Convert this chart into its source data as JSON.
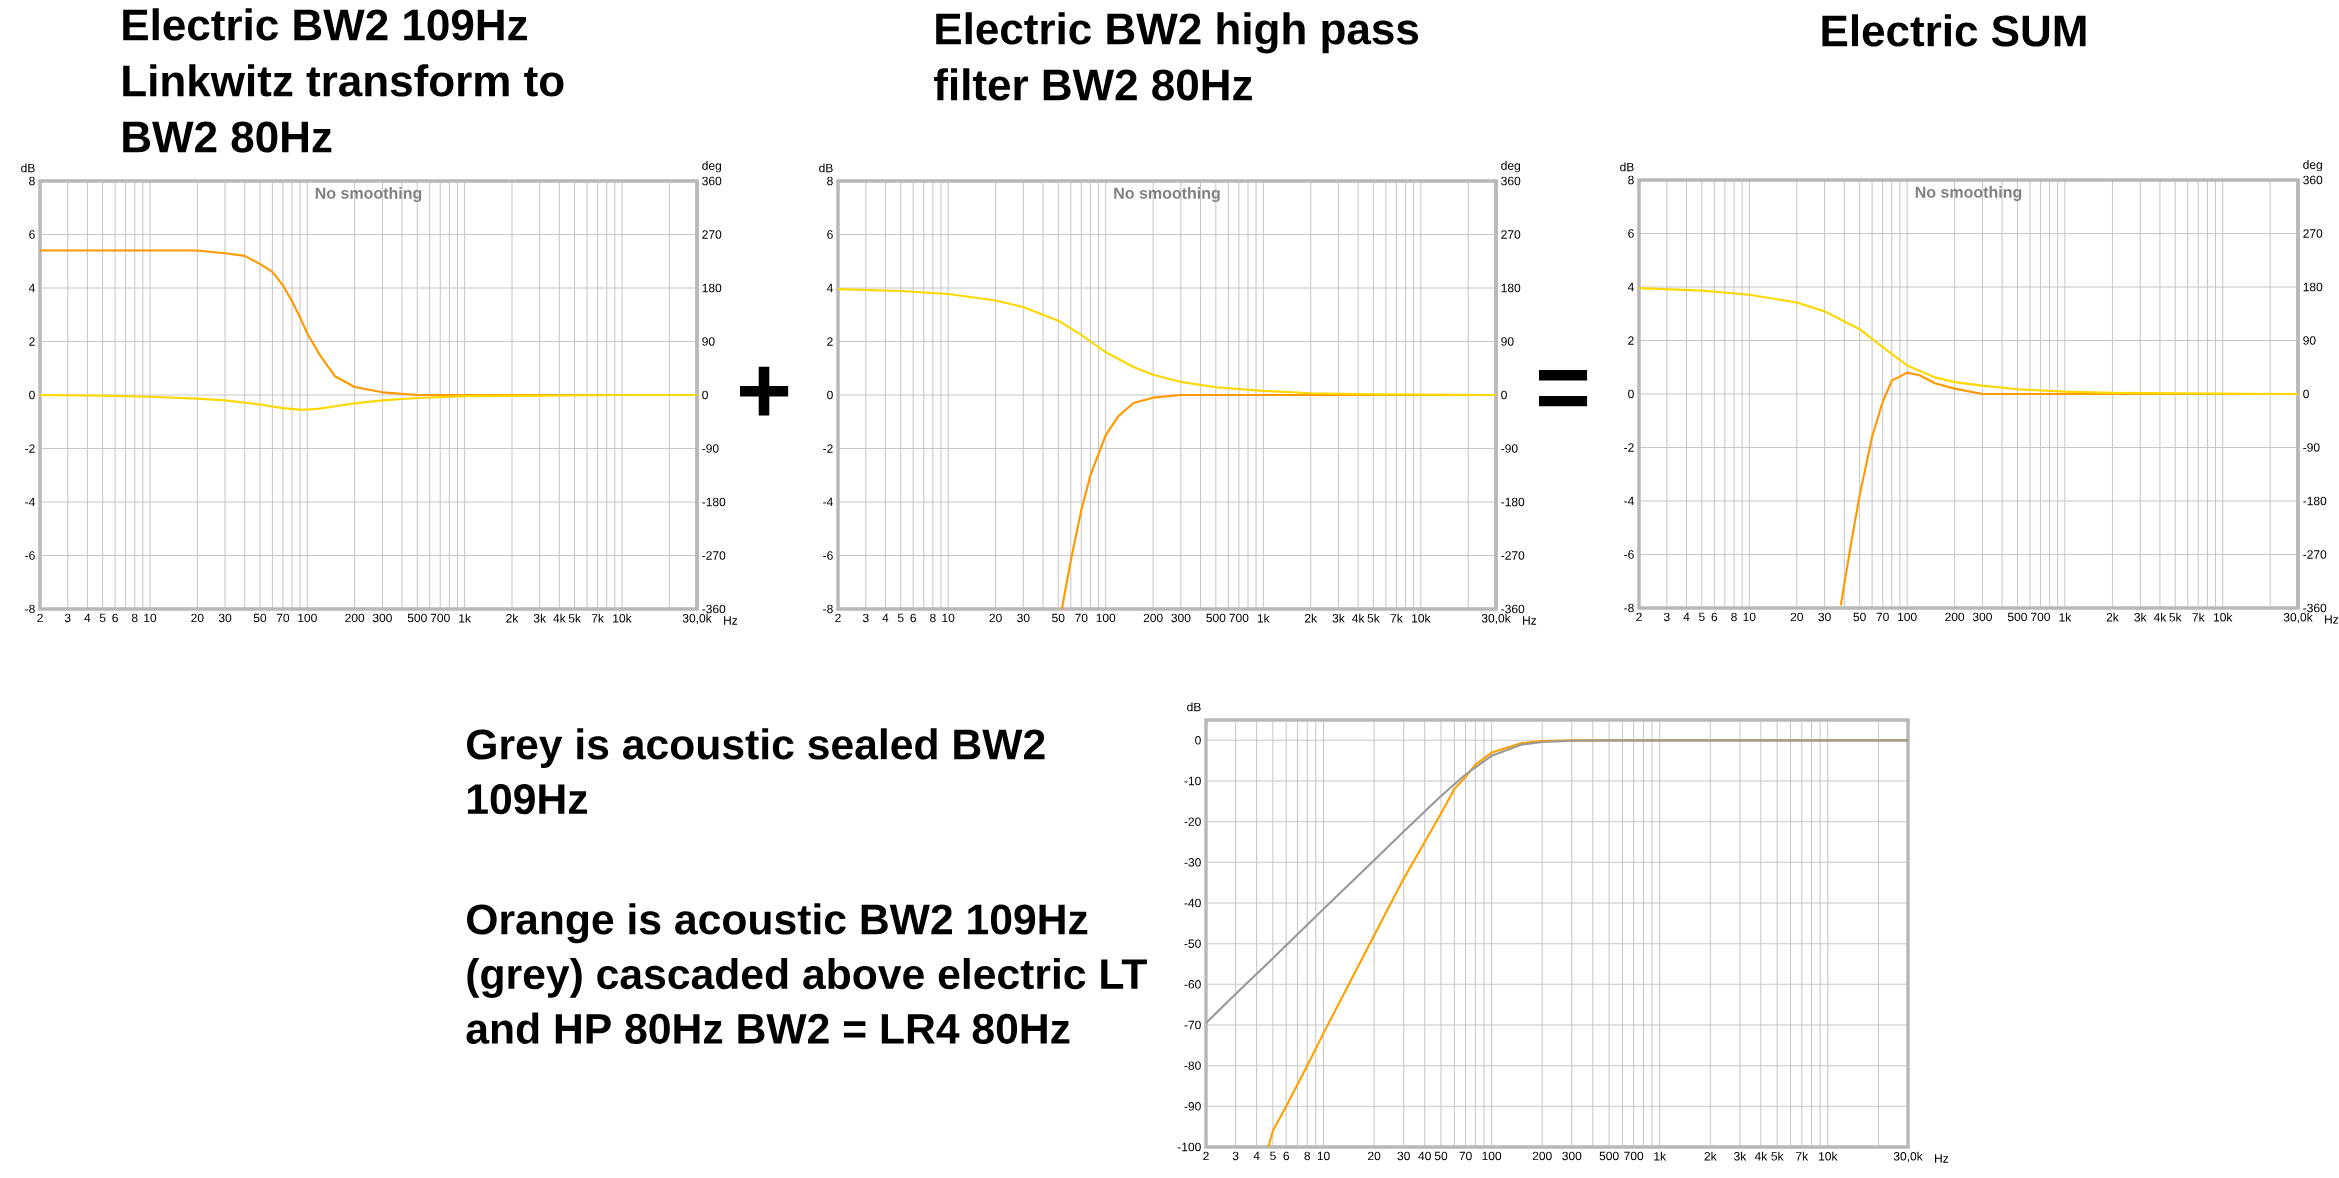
{
  "chart_data": [
    {
      "type": "line",
      "title": "Electric BW2 109Hz Linkwitz transform to BW2 80Hz",
      "annotations": [
        "No smoothing",
        "+"
      ],
      "xlabel": "Hz",
      "ylabel": "dB",
      "y2label": "deg",
      "log": "x",
      "grid": true,
      "xlim": [
        2,
        30000
      ],
      "xticks": [
        2,
        3,
        4,
        5,
        6,
        {
          "value": 7,
          "label": null
        },
        8,
        {
          "value": 9,
          "label": null
        },
        10,
        20,
        30,
        {
          "value": 40,
          "label": null
        },
        50,
        {
          "value": 60,
          "label": null
        },
        70,
        {
          "value": 80,
          "label": null
        },
        {
          "value": 90,
          "label": null
        },
        100,
        200,
        300,
        {
          "value": 400,
          "label": null
        },
        500,
        {
          "value": 600,
          "label": null
        },
        700,
        {
          "value": 800,
          "label": null
        },
        {
          "value": 900,
          "label": null
        },
        {
          "value": 1000,
          "label": "1k"
        },
        {
          "value": 2000,
          "label": "2k"
        },
        {
          "value": 3000,
          "label": "3k"
        },
        {
          "value": 4000,
          "label": "4k"
        },
        {
          "value": 5000,
          "label": "5k"
        },
        {
          "value": 6000,
          "label": null
        },
        {
          "value": 7000,
          "label": "7k"
        },
        {
          "value": 8000,
          "label": null
        },
        {
          "value": 9000,
          "label": null
        },
        {
          "value": 10000,
          "label": "10k"
        },
        {
          "value": 20000,
          "label": null
        },
        {
          "value": 30000,
          "label": "30,0k"
        }
      ],
      "ylim": [
        -8,
        8
      ],
      "yticks": [
        -8,
        -6,
        -4,
        -2,
        0,
        2,
        4,
        6,
        8
      ],
      "y2lim": [
        -360,
        360
      ],
      "y2ticks": [
        -360,
        -270,
        -180,
        -90,
        0,
        90,
        180,
        270,
        360
      ],
      "series": [
        {
          "color": "#ff9900",
          "x": [
            2,
            10,
            20,
            30,
            40,
            50,
            60,
            70,
            80,
            90,
            100,
            120,
            150,
            200,
            300,
            500,
            1000,
            30000
          ],
          "values": [
            5.4,
            5.4,
            5.4,
            5.3,
            5.2,
            4.9,
            4.6,
            4.1,
            3.5,
            2.9,
            2.3,
            1.5,
            0.7,
            0.3,
            0.1,
            0,
            0,
            0
          ]
        },
        {
          "color": "#ffd700",
          "axis": "y2",
          "x": [
            2,
            5,
            10,
            20,
            30,
            50,
            70,
            93,
            120,
            150,
            200,
            300,
            500,
            1000,
            3000,
            10000,
            30000
          ],
          "values": [
            0,
            -1,
            -3,
            -6,
            -9,
            -16,
            -22,
            -25,
            -23,
            -19,
            -14,
            -9,
            -5,
            -2,
            -1,
            0,
            0
          ]
        }
      ]
    },
    {
      "type": "line",
      "title": "Electric BW2 high pass filter BW2 80Hz",
      "annotations": [
        "No smoothing",
        "="
      ],
      "xlabel": "Hz",
      "ylabel": "dB",
      "y2label": "deg",
      "log": "x",
      "grid": true,
      "xlim": [
        2,
        30000
      ],
      "xticks": [
        2,
        3,
        4,
        5,
        6,
        {
          "value": 7,
          "label": null
        },
        8,
        {
          "value": 9,
          "label": null
        },
        10,
        20,
        30,
        {
          "value": 40,
          "label": null
        },
        50,
        {
          "value": 60,
          "label": null
        },
        70,
        {
          "value": 80,
          "label": null
        },
        {
          "value": 90,
          "label": null
        },
        100,
        200,
        300,
        {
          "value": 400,
          "label": null
        },
        500,
        {
          "value": 600,
          "label": null
        },
        700,
        {
          "value": 800,
          "label": null
        },
        {
          "value": 900,
          "label": null
        },
        {
          "value": 1000,
          "label": "1k"
        },
        {
          "value": 2000,
          "label": "2k"
        },
        {
          "value": 3000,
          "label": "3k"
        },
        {
          "value": 4000,
          "label": "4k"
        },
        {
          "value": 5000,
          "label": "5k"
        },
        {
          "value": 6000,
          "label": null
        },
        {
          "value": 7000,
          "label": "7k"
        },
        {
          "value": 8000,
          "label": null
        },
        {
          "value": 9000,
          "label": null
        },
        {
          "value": 10000,
          "label": "10k"
        },
        {
          "value": 20000,
          "label": null
        },
        {
          "value": 30000,
          "label": "30,0k"
        }
      ],
      "ylim": [
        -8,
        8
      ],
      "yticks": [
        -8,
        -6,
        -4,
        -2,
        0,
        2,
        4,
        6,
        8
      ],
      "y2lim": [
        -360,
        360
      ],
      "y2ticks": [
        -360,
        -270,
        -180,
        -90,
        0,
        90,
        180,
        270,
        360
      ],
      "series": [
        {
          "color": "#ff9900",
          "x": [
            52.7,
            55,
            60,
            70,
            80,
            100,
            120,
            150,
            200,
            300,
            500,
            1000,
            30000
          ],
          "values": [
            -8,
            -7.4,
            -6.2,
            -4.3,
            -3,
            -1.5,
            -0.8,
            -0.3,
            -0.1,
            0,
            0,
            0,
            0
          ]
        },
        {
          "color": "#ffd700",
          "axis": "y2",
          "x": [
            2,
            5,
            10,
            20,
            30,
            50,
            70,
            80,
            100,
            150,
            200,
            300,
            500,
            1000,
            2000,
            5000,
            30000
          ],
          "values": [
            178,
            175,
            170,
            159,
            148,
            125,
            101,
            90,
            72,
            47,
            34,
            22,
            13,
            7,
            3,
            1,
            0
          ]
        }
      ]
    },
    {
      "type": "line",
      "title": "Electric SUM",
      "annotations": [
        "No smoothing"
      ],
      "xlabel": "Hz",
      "ylabel": "dB",
      "y2label": "deg",
      "log": "x",
      "grid": true,
      "xlim": [
        2,
        30000
      ],
      "xticks": [
        2,
        3,
        4,
        5,
        6,
        {
          "value": 7,
          "label": null
        },
        8,
        {
          "value": 9,
          "label": null
        },
        10,
        20,
        30,
        {
          "value": 40,
          "label": null
        },
        50,
        {
          "value": 60,
          "label": null
        },
        70,
        {
          "value": 80,
          "label": null
        },
        {
          "value": 90,
          "label": null
        },
        100,
        200,
        300,
        {
          "value": 400,
          "label": null
        },
        500,
        {
          "value": 600,
          "label": null
        },
        700,
        {
          "value": 800,
          "label": null
        },
        {
          "value": 900,
          "label": null
        },
        {
          "value": 1000,
          "label": "1k"
        },
        {
          "value": 2000,
          "label": "2k"
        },
        {
          "value": 3000,
          "label": "3k"
        },
        {
          "value": 4000,
          "label": "4k"
        },
        {
          "value": 5000,
          "label": "5k"
        },
        {
          "value": 6000,
          "label": null
        },
        {
          "value": 7000,
          "label": "7k"
        },
        {
          "value": 8000,
          "label": null
        },
        {
          "value": 9000,
          "label": null
        },
        {
          "value": 10000,
          "label": "10k"
        },
        {
          "value": 20000,
          "label": null
        },
        {
          "value": 30000,
          "label": "30,0k"
        }
      ],
      "ylim": [
        -8,
        8
      ],
      "yticks": [
        -8,
        -6,
        -4,
        -2,
        0,
        2,
        4,
        6,
        8
      ],
      "y2lim": [
        -360,
        360
      ],
      "y2ticks": [
        -360,
        -270,
        -180,
        -90,
        0,
        90,
        180,
        270,
        360
      ],
      "series": [
        {
          "color": "#ff9900",
          "x": [
            38,
            40,
            45,
            50,
            60,
            70,
            80,
            100,
            120,
            150,
            200,
            300,
            500,
            30000
          ],
          "values": [
            -7.9,
            -7.1,
            -5.3,
            -3.8,
            -1.6,
            -0.3,
            0.5,
            0.8,
            0.7,
            0.4,
            0.2,
            0,
            0,
            0
          ]
        },
        {
          "color": "#ffd700",
          "axis": "y2",
          "x": [
            2,
            5,
            10,
            20,
            30,
            50,
            70,
            100,
            150,
            200,
            300,
            500,
            1000,
            2000,
            5000,
            30000
          ],
          "values": [
            178,
            174,
            167,
            154,
            139,
            109,
            79,
            48,
            28,
            20,
            14,
            8,
            4,
            2,
            1,
            0
          ]
        }
      ]
    },
    {
      "type": "line",
      "annotations": [
        "Grey is acoustic sealed BW2 109Hz",
        "Orange is acoustic BW2 109Hz (grey) cascaded above electric LT and HP 80Hz BW2 = LR4 80Hz"
      ],
      "xlabel": "Hz",
      "ylabel": "dB",
      "log": "x",
      "grid": true,
      "xlim": [
        2,
        30000
      ],
      "xticks": [
        2,
        3,
        4,
        5,
        6,
        {
          "value": 7,
          "label": null
        },
        8,
        {
          "value": 9,
          "label": null
        },
        10,
        20,
        30,
        40,
        50,
        {
          "value": 60,
          "label": null
        },
        70,
        {
          "value": 80,
          "label": null
        },
        {
          "value": 90,
          "label": null
        },
        100,
        200,
        300,
        {
          "value": 400,
          "label": null
        },
        500,
        {
          "value": 600,
          "label": null
        },
        700,
        {
          "value": 800,
          "label": null
        },
        {
          "value": 900,
          "label": null
        },
        {
          "value": 1000,
          "label": "1k"
        },
        {
          "value": 2000,
          "label": "2k"
        },
        {
          "value": 3000,
          "label": "3k"
        },
        {
          "value": 4000,
          "label": "4k"
        },
        {
          "value": 5000,
          "label": "5k"
        },
        {
          "value": 6000,
          "label": null
        },
        {
          "value": 7000,
          "label": "7k"
        },
        {
          "value": 8000,
          "label": null
        },
        {
          "value": 9000,
          "label": null
        },
        {
          "value": 10000,
          "label": "10k"
        },
        {
          "value": 20000,
          "label": null
        },
        {
          "value": 30000,
          "label": "30,0k"
        }
      ],
      "ylim": [
        -100,
        5
      ],
      "yticks": [
        -100,
        -90,
        -80,
        -70,
        -60,
        -50,
        -40,
        -30,
        -20,
        -10,
        0
      ],
      "series": [
        {
          "color": "#ffa000",
          "x": [
            4.7,
            5,
            6,
            8,
            10,
            20,
            30,
            40,
            50,
            60,
            70,
            80,
            100,
            150,
            200,
            300,
            500,
            30000
          ],
          "values": [
            -100,
            -96,
            -90,
            -80,
            -72,
            -48,
            -34,
            -25,
            -18,
            -12,
            -9,
            -6,
            -3,
            -0.7,
            -0.2,
            0,
            0,
            0
          ]
        },
        {
          "color": "#999999",
          "x": [
            2,
            3,
            5,
            10,
            20,
            30,
            50,
            70,
            100,
            150,
            200,
            300,
            500,
            30000
          ],
          "values": [
            -69.5,
            -62.4,
            -53.6,
            -41.5,
            -29.5,
            -22.4,
            -13.7,
            -8.4,
            -3.8,
            -1.1,
            -0.4,
            -0.1,
            0,
            0
          ]
        }
      ]
    }
  ]
}
